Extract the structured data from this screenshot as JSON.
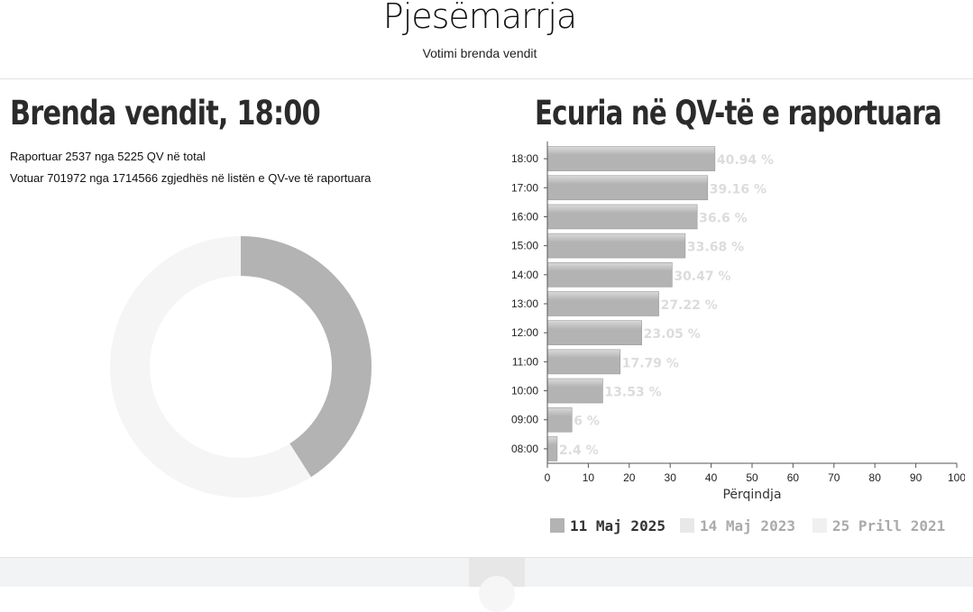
{
  "header": {
    "title": "Pjesëmarrja",
    "subtitle": "Votimi brenda vendit"
  },
  "left_panel": {
    "heading": "Brenda vendit, 18:00",
    "reported_line": "Raportuar 2537 nga 5225 QV në total",
    "voted_line": "Votuar 701972 nga 1714566 zgjedhës në listën e QV-ve të raportuara"
  },
  "donut": {
    "percent": 40.94,
    "filled_color": "#b3b3b3",
    "empty_color": "#f5f5f5"
  },
  "right_panel": {
    "heading": "Ecuria në QV-të e raportuara"
  },
  "colors": {
    "bar": "#b3b3b3",
    "bar_label": "#dcdcdc",
    "legend_2023": "#e8e8e8",
    "legend_2021": "#f0f0f0"
  },
  "chart_data": {
    "type": "bar",
    "orientation": "horizontal",
    "categories": [
      "18:00",
      "17:00",
      "16:00",
      "15:00",
      "14:00",
      "13:00",
      "12:00",
      "11:00",
      "10:00",
      "09:00",
      "08:00"
    ],
    "series": [
      {
        "name": "11 Maj 2025",
        "values": [
          40.94,
          39.16,
          36.6,
          33.68,
          30.47,
          27.22,
          23.05,
          17.79,
          13.53,
          6,
          2.4
        ]
      }
    ],
    "data_labels": [
      "40.94 %",
      "39.16 %",
      "36.6 %",
      "33.68 %",
      "30.47 %",
      "27.22 %",
      "23.05 %",
      "17.79 %",
      "13.53 %",
      "6 %",
      "2.4 %"
    ],
    "legend": [
      {
        "label": "11 Maj 2025",
        "active": true
      },
      {
        "label": "14 Maj 2023",
        "active": false
      },
      {
        "label": "25 Prill 2021",
        "active": false
      }
    ],
    "xlabel": "Përqindja",
    "xlim": [
      0,
      100
    ],
    "xticks": [
      0,
      10,
      20,
      30,
      40,
      50,
      60,
      70,
      80,
      90,
      100
    ],
    "grid": false,
    "legend_position": "bottom"
  }
}
